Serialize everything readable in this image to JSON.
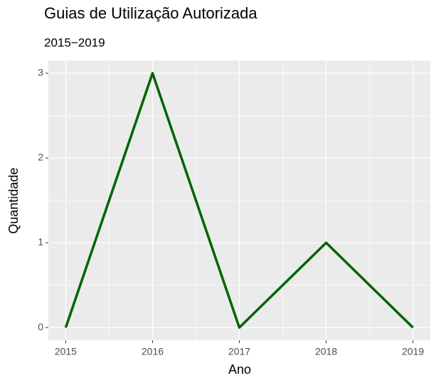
{
  "chart_data": {
    "type": "line",
    "title": "Guias de Utilização Autorizada",
    "subtitle": "2015−2019",
    "x_label": "Ano",
    "y_label": "Quantidade",
    "x": [
      2015,
      2016,
      2017,
      2018,
      2019
    ],
    "series": [
      {
        "name": "Quantidade",
        "color": "#006400",
        "values": [
          0,
          3,
          0,
          1,
          0
        ]
      }
    ],
    "xlim": [
      2014.8,
      2019.2
    ],
    "xticks": [
      2015,
      2016,
      2017,
      2018,
      2019
    ],
    "ylim": [
      -0.15,
      3.15
    ],
    "yticks": [
      0,
      1,
      2,
      3
    ],
    "grid": true
  }
}
